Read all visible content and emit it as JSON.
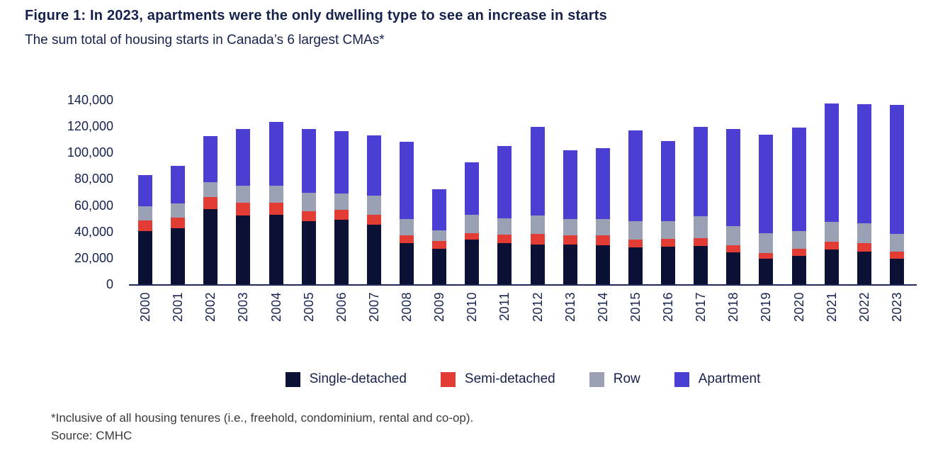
{
  "figure": {
    "title": "Figure 1: In 2023, apartments were the only dwelling type to see an increase in starts",
    "subtitle": "The sum total of housing starts in Canada’s 6 largest CMAs*",
    "footnote": "*Inclusive of all housing tenures (i.e., freehold, condominium, rental and co-op).",
    "source": "Source: CMHC"
  },
  "colors": {
    "single_detached": "#0b1134",
    "semi_detached": "#e23c35",
    "row": "#9ba1b4",
    "apartment": "#4b3fd3",
    "text_navy": "#16224e",
    "axis_line": "#1e2a55",
    "footnote_gray": "#3a3a3a"
  },
  "chart_data": {
    "type": "bar",
    "stacked": true,
    "title": "Figure 1: In 2023, apartments were the only dwelling type to see an increase in starts",
    "subtitle": "The sum total of housing starts in Canada’s 6 largest CMAs*",
    "xlabel": "",
    "ylabel": "",
    "grid": false,
    "legend_position": "bottom",
    "ylim": [
      0,
      140000
    ],
    "ytick_step": 20000,
    "ytick_labels": [
      "0",
      "20,000",
      "40,000",
      "60,000",
      "80,000",
      "100,000",
      "120,000",
      "140,000"
    ],
    "categories": [
      "2000",
      "2001",
      "2002",
      "2003",
      "2004",
      "2005",
      "2006",
      "2007",
      "2008",
      "2009",
      "2010",
      "2011",
      "2012",
      "2013",
      "2014",
      "2015",
      "2016",
      "2017",
      "2018",
      "2019",
      "2020",
      "2021",
      "2022",
      "2023"
    ],
    "series": [
      {
        "name": "Single-detached",
        "color": "#0b1134",
        "values": [
          40500,
          42500,
          57000,
          52500,
          53000,
          48000,
          49000,
          45000,
          31000,
          27000,
          34000,
          31000,
          30000,
          30000,
          29500,
          28000,
          28500,
          29000,
          24500,
          19500,
          21500,
          26500,
          25000,
          19500
        ]
      },
      {
        "name": "Semi-detached",
        "color": "#e23c35",
        "values": [
          8000,
          8000,
          9000,
          9500,
          9000,
          7500,
          7500,
          8000,
          6000,
          6000,
          5000,
          6500,
          8000,
          7000,
          7500,
          6000,
          6000,
          6000,
          5000,
          4000,
          5500,
          6000,
          6000,
          5500
        ]
      },
      {
        "name": "Row",
        "color": "#9ba1b4",
        "values": [
          11000,
          11000,
          11500,
          13000,
          13000,
          14000,
          12500,
          14500,
          12500,
          8000,
          14000,
          12500,
          14000,
          12500,
          12500,
          14000,
          13500,
          16500,
          14500,
          15500,
          13500,
          15000,
          15500,
          13000
        ]
      },
      {
        "name": "Apartment",
        "color": "#4b3fd3",
        "values": [
          23500,
          28500,
          35000,
          43000,
          48500,
          48500,
          47500,
          45500,
          59000,
          31000,
          39500,
          55000,
          67500,
          52500,
          54000,
          69000,
          61000,
          68000,
          74000,
          74500,
          78500,
          90000,
          90500,
          98500
        ]
      }
    ],
    "totals": [
      83000,
      90000,
      112500,
      118000,
      123500,
      118000,
      116500,
      113000,
      108500,
      72000,
      92500,
      105000,
      119500,
      102000,
      103500,
      117000,
      109000,
      119500,
      118000,
      113500,
      119000,
      137500,
      137000,
      136500
    ]
  }
}
